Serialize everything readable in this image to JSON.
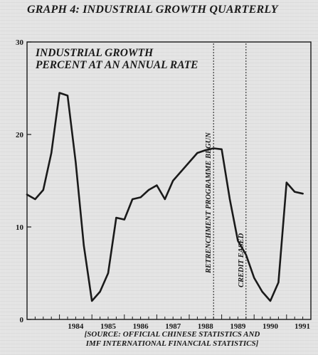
{
  "header": {
    "graph_title": "GRAPH 4: INDUSTRIAL GROWTH QUARTERLY",
    "source_line1": "[SOURCE: OFFICIAL CHINESE STATISTICS AND",
    "source_line2": "IMF INTERNATIONAL FINANCIAL STATISTICS]"
  },
  "chart_data": {
    "type": "line",
    "title_line1": "INDUSTRIAL GROWTH",
    "title_line2": "PERCENT AT AN ANNUAL RATE",
    "xlabel": "",
    "ylabel": "",
    "xlim": [
      1983.0,
      1991.75
    ],
    "ylim": [
      0,
      30
    ],
    "y_ticks": [
      0,
      10,
      20,
      30
    ],
    "x_year_labels": [
      "1984",
      "1985",
      "1986",
      "1987",
      "1988",
      "1989",
      "1990",
      "1991"
    ],
    "grid": false,
    "series": [
      {
        "x": [
          1983.0,
          1983.25,
          1983.5,
          1983.75,
          1984.0,
          1984.25,
          1984.5,
          1984.75,
          1985.0,
          1985.25,
          1985.5,
          1985.75,
          1986.0,
          1986.25,
          1986.5,
          1986.75,
          1987.0,
          1987.25,
          1987.5,
          1987.75,
          1988.0,
          1988.25,
          1988.5,
          1988.75,
          1989.0,
          1989.25,
          1989.5,
          1989.75,
          1990.0,
          1990.25,
          1990.5,
          1990.75,
          1991.0,
          1991.25,
          1991.5
        ],
        "values": [
          13.5,
          13.0,
          14.0,
          18.0,
          24.5,
          24.2,
          17.0,
          8.0,
          2.0,
          3.0,
          5.0,
          11.0,
          10.8,
          13.0,
          13.2,
          14.0,
          14.5,
          13.0,
          15.0,
          16.0,
          17.0,
          18.0,
          18.3,
          18.5,
          18.4,
          13.0,
          8.5,
          7.0,
          4.5,
          3.0,
          2.0,
          4.0,
          14.8,
          13.8,
          13.6
        ]
      }
    ],
    "annotations": [
      {
        "text": "RETRENCHMENT PROGRAMME BEGUN",
        "x": 1988.75
      },
      {
        "text": "CREDIT EASED",
        "x": 1989.75
      }
    ]
  }
}
